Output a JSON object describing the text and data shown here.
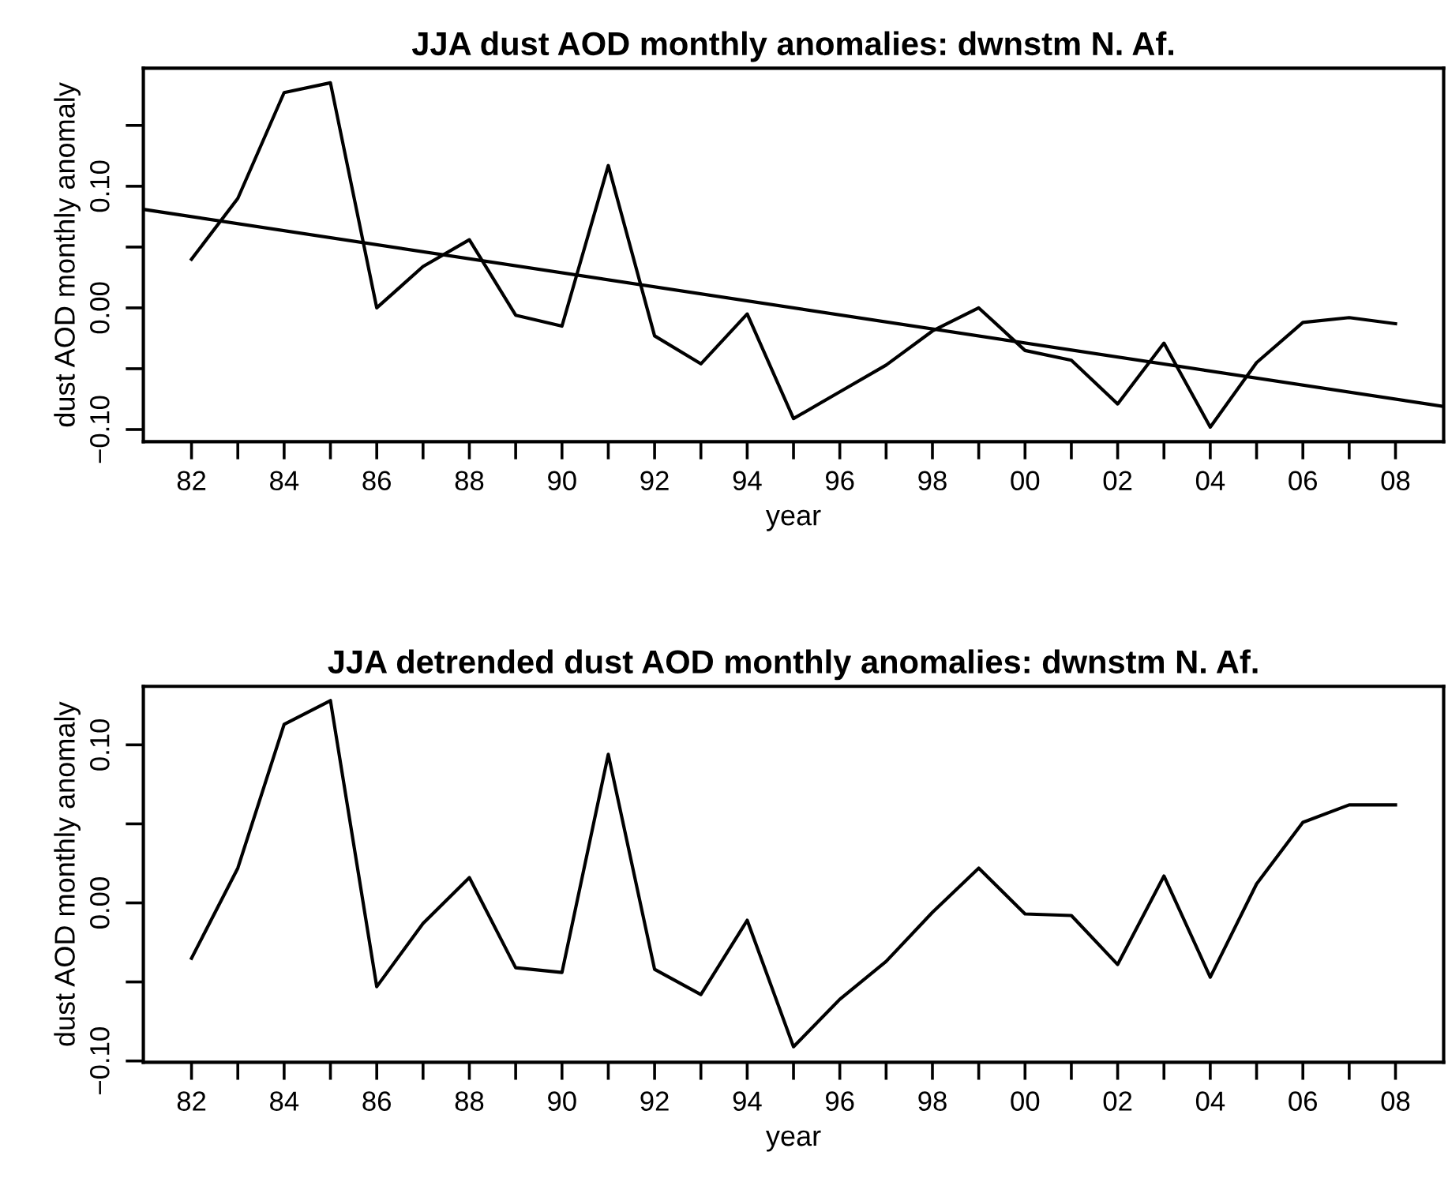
{
  "chart_data": [
    {
      "type": "line",
      "title": "JJA dust AOD monthly anomalies: dwnstm N. Af.",
      "xlabel": "year",
      "ylabel": "dust AOD monthly anomaly",
      "x": [
        1982,
        1983,
        1984,
        1985,
        1986,
        1987,
        1988,
        1989,
        1990,
        1991,
        1992,
        1993,
        1994,
        1995,
        1996,
        1997,
        1998,
        1999,
        2000,
        2001,
        2002,
        2003,
        2004,
        2005,
        2006,
        2007,
        2008
      ],
      "series": [
        {
          "color": "#000000",
          "values": [
            0.04,
            0.09,
            0.177,
            0.185,
            0.0,
            0.034,
            0.056,
            -0.006,
            -0.015,
            0.117,
            -0.023,
            -0.046,
            -0.005,
            -0.091,
            -0.069,
            -0.047,
            -0.019,
            0.0,
            -0.035,
            -0.043,
            -0.079,
            -0.029,
            -0.098,
            -0.045,
            -0.012,
            -0.008,
            -0.013
          ]
        },
        {
          "color": "#000000",
          "x": [
            1980.96,
            2009.04
          ],
          "values": [
            0.081,
            -0.081
          ]
        }
      ],
      "xlim": [
        1980.96,
        2009.04
      ],
      "ylim": [
        -0.11,
        0.197
      ],
      "xticks": [
        {
          "value": 1982,
          "label": "82"
        },
        {
          "value": 1983,
          "label": null
        },
        {
          "value": 1984,
          "label": "84"
        },
        {
          "value": 1985,
          "label": null
        },
        {
          "value": 1986,
          "label": "86"
        },
        {
          "value": 1987,
          "label": null
        },
        {
          "value": 1988,
          "label": "88"
        },
        {
          "value": 1989,
          "label": null
        },
        {
          "value": 1990,
          "label": "90"
        },
        {
          "value": 1991,
          "label": null
        },
        {
          "value": 1992,
          "label": "92"
        },
        {
          "value": 1993,
          "label": null
        },
        {
          "value": 1994,
          "label": "94"
        },
        {
          "value": 1995,
          "label": null
        },
        {
          "value": 1996,
          "label": "96"
        },
        {
          "value": 1997,
          "label": null
        },
        {
          "value": 1998,
          "label": "98"
        },
        {
          "value": 1999,
          "label": null
        },
        {
          "value": 2000,
          "label": "00"
        },
        {
          "value": 2001,
          "label": null
        },
        {
          "value": 2002,
          "label": "02"
        },
        {
          "value": 2003,
          "label": null
        },
        {
          "value": 2004,
          "label": "04"
        },
        {
          "value": 2005,
          "label": null
        },
        {
          "value": 2006,
          "label": "06"
        },
        {
          "value": 2007,
          "label": null
        },
        {
          "value": 2008,
          "label": "08"
        }
      ],
      "yticks": [
        {
          "value": -0.1,
          "label": "−0.10"
        },
        {
          "value": -0.05,
          "label": null
        },
        {
          "value": 0.0,
          "label": "0.00"
        },
        {
          "value": 0.05,
          "label": null
        },
        {
          "value": 0.1,
          "label": "0.10"
        },
        {
          "value": 0.15,
          "label": null
        }
      ]
    },
    {
      "type": "line",
      "title": "JJA detrended dust AOD monthly anomalies: dwnstm N. Af.",
      "xlabel": "year",
      "ylabel": "dust AOD monthly anomaly",
      "x": [
        1982,
        1983,
        1984,
        1985,
        1986,
        1987,
        1988,
        1989,
        1990,
        1991,
        1992,
        1993,
        1994,
        1995,
        1996,
        1997,
        1998,
        1999,
        2000,
        2001,
        2002,
        2003,
        2004,
        2005,
        2006,
        2007,
        2008
      ],
      "series": [
        {
          "color": "#000000",
          "values": [
            -0.035,
            0.022,
            0.113,
            0.128,
            -0.053,
            -0.013,
            0.016,
            -0.041,
            -0.044,
            0.094,
            -0.042,
            -0.058,
            -0.011,
            -0.091,
            -0.061,
            -0.037,
            -0.006,
            0.022,
            -0.007,
            -0.008,
            -0.039,
            0.017,
            -0.047,
            0.012,
            0.051,
            0.062,
            0.062
          ]
        }
      ],
      "xlim": [
        1980.96,
        2009.04
      ],
      "ylim": [
        -0.1008,
        0.137
      ],
      "xticks": [
        {
          "value": 1982,
          "label": "82"
        },
        {
          "value": 1983,
          "label": null
        },
        {
          "value": 1984,
          "label": "84"
        },
        {
          "value": 1985,
          "label": null
        },
        {
          "value": 1986,
          "label": "86"
        },
        {
          "value": 1987,
          "label": null
        },
        {
          "value": 1988,
          "label": "88"
        },
        {
          "value": 1989,
          "label": null
        },
        {
          "value": 1990,
          "label": "90"
        },
        {
          "value": 1991,
          "label": null
        },
        {
          "value": 1992,
          "label": "92"
        },
        {
          "value": 1993,
          "label": null
        },
        {
          "value": 1994,
          "label": "94"
        },
        {
          "value": 1995,
          "label": null
        },
        {
          "value": 1996,
          "label": "96"
        },
        {
          "value": 1997,
          "label": null
        },
        {
          "value": 1998,
          "label": "98"
        },
        {
          "value": 1999,
          "label": null
        },
        {
          "value": 2000,
          "label": "00"
        },
        {
          "value": 2001,
          "label": null
        },
        {
          "value": 2002,
          "label": "02"
        },
        {
          "value": 2003,
          "label": null
        },
        {
          "value": 2004,
          "label": "04"
        },
        {
          "value": 2005,
          "label": null
        },
        {
          "value": 2006,
          "label": "06"
        },
        {
          "value": 2007,
          "label": null
        },
        {
          "value": 2008,
          "label": "08"
        }
      ],
      "yticks": [
        {
          "value": -0.1,
          "label": "−0.10"
        },
        {
          "value": -0.05,
          "label": null
        },
        {
          "value": 0.0,
          "label": "0.00"
        },
        {
          "value": 0.05,
          "label": null
        },
        {
          "value": 0.1,
          "label": "0.10"
        }
      ]
    }
  ]
}
